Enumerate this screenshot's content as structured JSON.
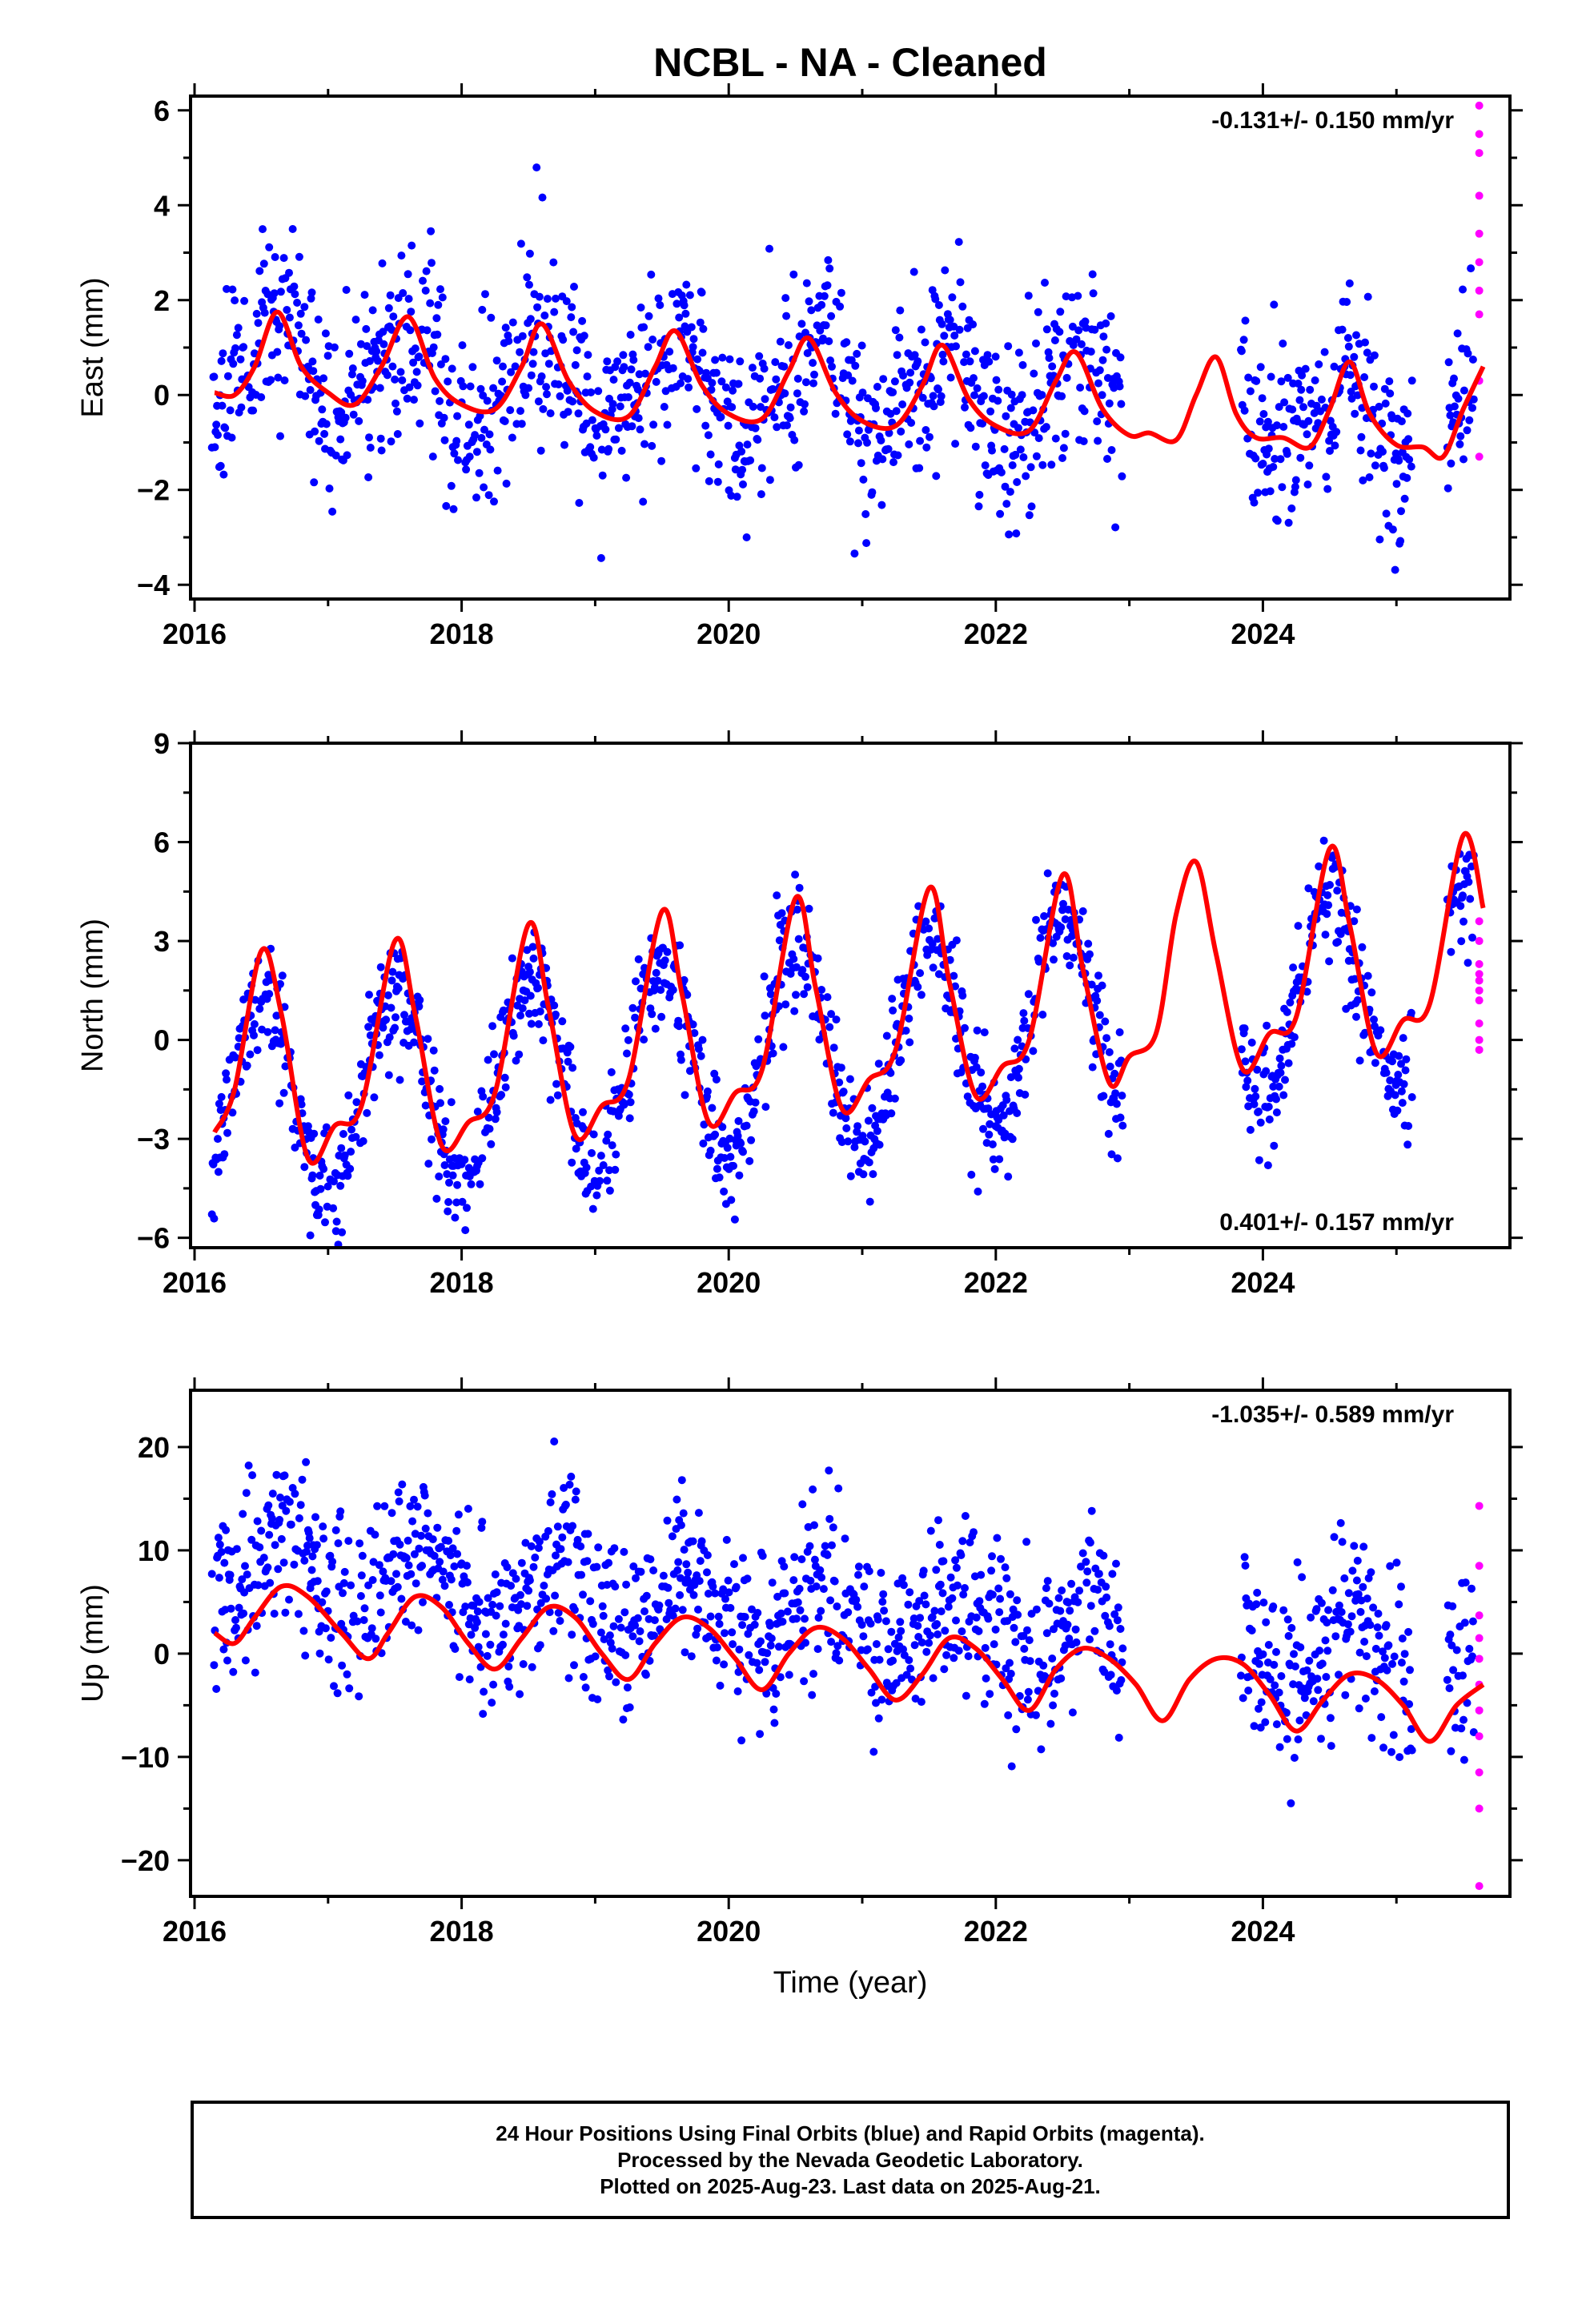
{
  "title": "NCBL  - NA - Cleaned",
  "xlabel": "Time (year)",
  "caption": [
    "24 Hour Positions Using Final Orbits (blue) and Rapid Orbits (magenta).",
    "Processed by the Nevada Geodetic Laboratory.",
    "Plotted on 2025-Aug-23. Last data on 2025-Aug-21."
  ],
  "colors": {
    "final": "#0000ff",
    "rapid": "#ff00ff",
    "fit": "#ff0000",
    "axis": "#000000"
  },
  "chart_data": [
    {
      "type": "scatter",
      "panel": "east",
      "ylabel": "East (mm)",
      "rate_label": "-0.131+/- 0.150 mm/yr",
      "rate_position": "top-right",
      "xlim": [
        2015.97,
        2025.85
      ],
      "ylim": [
        -4.3,
        6.3
      ],
      "xticks": [
        2016,
        2018,
        2020,
        2022,
        2024
      ],
      "yticks": [
        -4,
        -2,
        0,
        2,
        4,
        6
      ],
      "yticklabels": [
        "−4",
        "−2",
        "0",
        "2",
        "4",
        "6"
      ],
      "params": {
        "base": 0.1,
        "trend": -0.131,
        "amp": 0.9,
        "phase": 0.62,
        "spread": 1.0,
        "sub_amp": 0.25,
        "seed": 11
      },
      "fit_curve": {
        "x": [
          2016.15,
          2016.3,
          2016.45,
          2016.62,
          2016.8,
          2017.0,
          2017.2,
          2017.4,
          2017.6,
          2017.8,
          2018.0,
          2018.25,
          2018.45,
          2018.6,
          2018.8,
          2019.0,
          2019.25,
          2019.45,
          2019.6,
          2019.8,
          2020.0,
          2020.25,
          2020.45,
          2020.6,
          2020.8,
          2021.0,
          2021.25,
          2021.45,
          2021.6,
          2021.8,
          2022.0,
          2022.25,
          2022.45,
          2022.6,
          2022.8,
          2023.0,
          2023.15,
          2023.35,
          2023.5,
          2023.65,
          2023.8,
          2023.95,
          2024.15,
          2024.35,
          2024.5,
          2024.65,
          2024.8,
          2025.0,
          2025.2,
          2025.35,
          2025.5,
          2025.65
        ],
        "y": [
          0.05,
          0.0,
          0.6,
          1.75,
          0.6,
          0.05,
          -0.2,
          0.6,
          1.65,
          0.35,
          -0.2,
          -0.3,
          0.6,
          1.5,
          0.3,
          -0.35,
          -0.45,
          0.6,
          1.35,
          0.2,
          -0.4,
          -0.5,
          0.5,
          1.2,
          0.05,
          -0.55,
          -0.65,
          0.2,
          1.05,
          -0.1,
          -0.65,
          -0.75,
          0.3,
          0.9,
          -0.3,
          -0.85,
          -0.8,
          -0.95,
          0.0,
          0.8,
          -0.4,
          -0.9,
          -0.9,
          -1.1,
          -0.3,
          0.7,
          -0.4,
          -1.05,
          -1.1,
          -1.3,
          -0.3,
          0.6
        ]
      },
      "rapid_points": {
        "x": 2025.62,
        "y": [
          6.1,
          5.5,
          5.1,
          4.2,
          3.4,
          2.8,
          2.2,
          1.7,
          0.3,
          -1.3
        ]
      }
    },
    {
      "type": "scatter",
      "panel": "north",
      "ylabel": "North (mm)",
      "rate_label": "0.401+/- 0.157 mm/yr",
      "rate_position": "bottom-right",
      "xlim": [
        2015.97,
        2025.85
      ],
      "ylim": [
        -6.3,
        9.0
      ],
      "xticks": [
        2016,
        2018,
        2020,
        2022,
        2024
      ],
      "yticks": [
        -6,
        -3,
        0,
        3,
        6,
        9
      ],
      "yticklabels": [
        "−6",
        "−3",
        "0",
        "3",
        "6",
        "9"
      ],
      "params": {
        "base": -0.2,
        "trend": 0.401,
        "amp": 3.0,
        "phase": 0.5,
        "spread": 0.9,
        "sub_amp": 0.0,
        "seed": 23
      },
      "fit_curve": {
        "x": [
          2016.15,
          2016.3,
          2016.5,
          2016.65,
          2016.85,
          2017.05,
          2017.25,
          2017.5,
          2017.65,
          2017.85,
          2018.05,
          2018.25,
          2018.5,
          2018.65,
          2018.85,
          2019.05,
          2019.25,
          2019.5,
          2019.65,
          2019.85,
          2020.05,
          2020.25,
          2020.5,
          2020.65,
          2020.85,
          2021.05,
          2021.25,
          2021.5,
          2021.65,
          2021.85,
          2022.05,
          2022.25,
          2022.5,
          2022.65,
          2022.85,
          2023.0,
          2023.2,
          2023.35,
          2023.5,
          2023.65,
          2023.85,
          2024.05,
          2024.25,
          2024.5,
          2024.65,
          2024.85,
          2025.05,
          2025.25,
          2025.5,
          2025.65
        ],
        "y": [
          -2.8,
          -1.5,
          2.7,
          0.8,
          -3.6,
          -2.6,
          -2.0,
          3.0,
          0.8,
          -3.2,
          -2.5,
          -1.6,
          3.5,
          1.0,
          -2.9,
          -2.0,
          -1.2,
          3.9,
          1.4,
          -2.5,
          -1.6,
          -0.9,
          4.3,
          1.6,
          -2.1,
          -1.2,
          -0.3,
          4.6,
          1.8,
          -1.7,
          -0.8,
          0.0,
          5.0,
          2.2,
          -1.3,
          -0.5,
          0.2,
          3.8,
          5.4,
          2.6,
          -0.9,
          0.2,
          0.7,
          5.8,
          3.5,
          -0.4,
          0.6,
          1.1,
          6.2,
          4.0
        ]
      },
      "rapid_points": {
        "x": 2025.62,
        "y": [
          3.6,
          3.0,
          2.3,
          2.0,
          1.8,
          1.5,
          1.2,
          0.5,
          0.0,
          -0.3
        ]
      }
    },
    {
      "type": "scatter",
      "panel": "up",
      "ylabel": "Up (mm)",
      "rate_label": "-1.035+/- 0.589 mm/yr",
      "rate_position": "top-right",
      "xlim": [
        2015.97,
        2025.85
      ],
      "ylim": [
        -23.5,
        25.5
      ],
      "xticks": [
        2016,
        2018,
        2020,
        2022,
        2024
      ],
      "yticks": [
        -20,
        -10,
        0,
        10,
        20
      ],
      "yticklabels": [
        "−20",
        "−10",
        "0",
        "10",
        "20"
      ],
      "params": {
        "base": 3.5,
        "trend": -1.035,
        "amp": 3.2,
        "phase": 0.7,
        "spread": 4.2,
        "sub_amp": 0.0,
        "seed": 37
      },
      "fit_curve": {
        "x": [
          2016.15,
          2016.3,
          2016.45,
          2016.65,
          2016.85,
          2017.1,
          2017.3,
          2017.45,
          2017.65,
          2017.85,
          2018.05,
          2018.25,
          2018.45,
          2018.65,
          2018.85,
          2019.05,
          2019.25,
          2019.45,
          2019.65,
          2019.85,
          2020.05,
          2020.25,
          2020.45,
          2020.65,
          2020.85,
          2021.05,
          2021.25,
          2021.45,
          2021.65,
          2021.85,
          2022.05,
          2022.25,
          2022.45,
          2022.65,
          2022.85,
          2023.05,
          2023.25,
          2023.45,
          2023.65,
          2023.85,
          2024.05,
          2024.25,
          2024.45,
          2024.65,
          2024.85,
          2025.05,
          2025.25,
          2025.45,
          2025.65
        ],
        "y": [
          2.0,
          1.0,
          3.5,
          6.5,
          5.5,
          2.0,
          -0.5,
          2.0,
          5.5,
          4.5,
          1.0,
          -1.5,
          1.5,
          4.5,
          3.5,
          0.0,
          -2.5,
          1.0,
          3.5,
          2.5,
          -0.5,
          -3.5,
          0.0,
          2.5,
          1.5,
          -1.5,
          -4.5,
          -2.0,
          1.5,
          0.5,
          -2.5,
          -5.5,
          -1.5,
          0.5,
          -0.5,
          -3.0,
          -6.5,
          -2.5,
          -0.5,
          -1.0,
          -4.0,
          -7.5,
          -4.5,
          -2.0,
          -2.5,
          -5.0,
          -8.5,
          -5.0,
          -3.0
        ]
      },
      "rapid_points": {
        "x": 2025.62,
        "y": [
          14.3,
          8.5,
          3.7,
          1.5,
          -0.5,
          -3.0,
          -5.5,
          -8.0,
          -11.5,
          -15.0,
          -22.5
        ]
      }
    }
  ]
}
